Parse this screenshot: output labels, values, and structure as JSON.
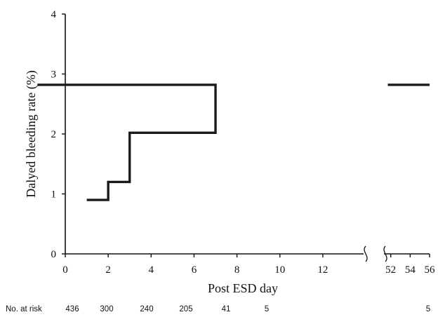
{
  "chart_data": {
    "type": "line",
    "subtype": "step",
    "ylabel": "Dalyed bleeding rate (%)",
    "xlabel": "Post ESD day",
    "ylim": [
      0,
      4
    ],
    "yticks": [
      "0",
      "1",
      "2",
      "3",
      "4"
    ],
    "x_segments": [
      {
        "range": [
          0,
          13.9
        ],
        "ticks": [
          "0",
          "2",
          "4",
          "6",
          "8",
          "10",
          "12"
        ]
      },
      {
        "range": [
          51.3,
          56
        ],
        "ticks": [
          "52",
          "54",
          "56"
        ]
      }
    ],
    "axis_break": true,
    "grid": false,
    "series": [
      {
        "points": [
          [
            1,
            0.9
          ],
          [
            2,
            0.9
          ],
          [
            2,
            1.2
          ],
          [
            3,
            1.2
          ],
          [
            3,
            2.02
          ],
          [
            7,
            2.02
          ],
          [
            7,
            2.82
          ],
          [
            56,
            2.82
          ]
        ],
        "line_gap": [
          15.6,
          51.7
        ]
      }
    ],
    "risk_table": {
      "label": "No. at risk",
      "values": [
        "436",
        "300",
        "240",
        "205",
        "41",
        "5",
        "5"
      ]
    }
  }
}
